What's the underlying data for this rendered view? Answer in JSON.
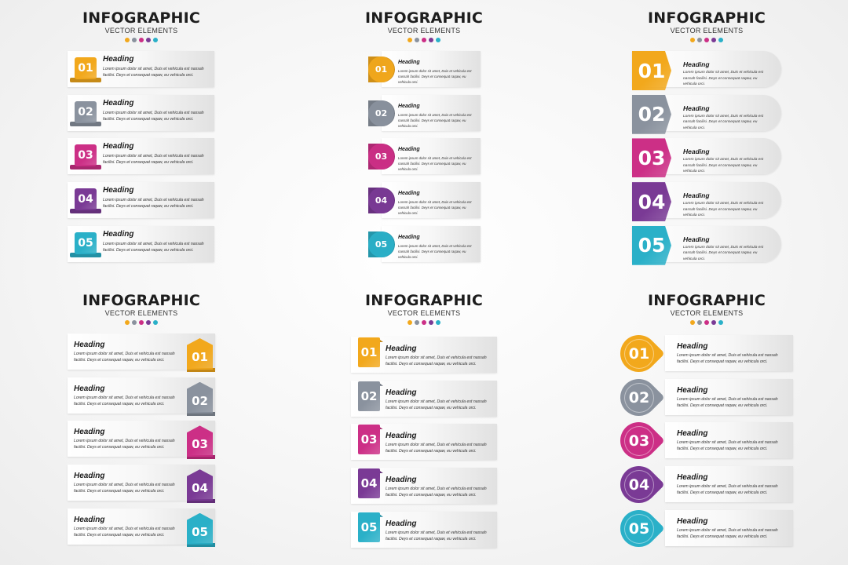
{
  "header": {
    "title": "INFOGRAPHIC",
    "subtitle": "VECTOR ELEMENTS"
  },
  "colors": [
    "#f2a81c",
    "#8a929e",
    "#cc2f86",
    "#7a3a95",
    "#2ab0c8"
  ],
  "items": [
    {
      "num": "01",
      "heading": "Heading",
      "body": "Lorem ipsum dolor sit amet, Duis et vehicula est nassah facilisi. Deys et consequat raqaw, eu vehicula orci."
    },
    {
      "num": "02",
      "heading": "Heading",
      "body": "Lorem ipsum dolor sit amet, Duis et vehicula est nassah facilisi. Deys et consequat raqaw, eu vehicula orci."
    },
    {
      "num": "03",
      "heading": "Heading",
      "body": "Lorem ipsum dolor sit amet, Duis et vehicula est nassah facilisi. Deys et consequat raqaw, eu vehicula orci."
    },
    {
      "num": "04",
      "heading": "Heading",
      "body": "Lorem ipsum dolor sit amet, Duis et vehicula est nassah facilisi. Deys et consequat raqaw, eu vehicula orci."
    },
    {
      "num": "05",
      "heading": "Heading",
      "body": "Lorem ipsum dolor sit amet, Duis et vehicula est nassah facilisi. Deys et consequat raqaw, eu vehicula orci."
    }
  ]
}
